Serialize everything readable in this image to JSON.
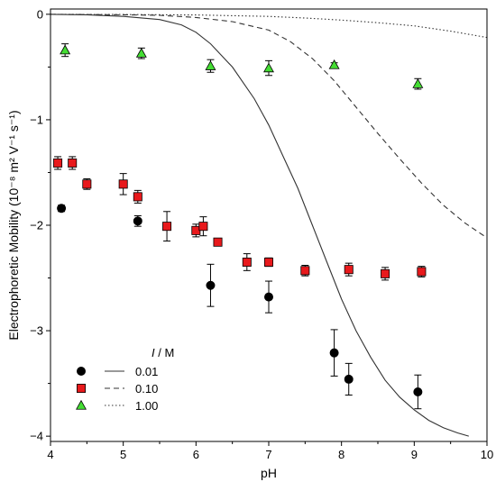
{
  "chart_data": {
    "type": "scatter",
    "xlabel": "pH",
    "ylabel": "Electrophoretic Mobility (10⁻⁸ m² V⁻¹ s⁻¹)",
    "xlim": [
      4,
      10
    ],
    "ylim": [
      -4.05,
      0.05
    ],
    "x_ticks": [
      4,
      5,
      6,
      7,
      8,
      9,
      10
    ],
    "y_ticks": [
      0,
      -1,
      -2,
      -3,
      -4
    ],
    "grid": false,
    "legend": {
      "position": "bottom-left",
      "title_italic": "I",
      "title_rest": " / M",
      "entries": [
        "0.01",
        "0.10",
        "1.00"
      ]
    },
    "series": [
      {
        "marker": "circle",
        "color": "#000000",
        "line_style": "solid",
        "points": [
          {
            "x": 4.15,
            "y": -1.84,
            "err": 0.03
          },
          {
            "x": 5.2,
            "y": -1.96,
            "err": 0.05
          },
          {
            "x": 6.2,
            "y": -2.57,
            "err": 0.2
          },
          {
            "x": 7.0,
            "y": -2.68,
            "err": 0.15
          },
          {
            "x": 7.9,
            "y": -3.21,
            "err": 0.22
          },
          {
            "x": 8.1,
            "y": -3.46,
            "err": 0.15
          },
          {
            "x": 9.05,
            "y": -3.58,
            "err": 0.16
          }
        ]
      },
      {
        "marker": "square",
        "color": "#e8191c",
        "line_style": "dashed",
        "points": [
          {
            "x": 4.1,
            "y": -1.41,
            "err": 0.06
          },
          {
            "x": 4.3,
            "y": -1.41,
            "err": 0.06
          },
          {
            "x": 4.5,
            "y": -1.61,
            "err": 0.05
          },
          {
            "x": 5.0,
            "y": -1.61,
            "err": 0.1
          },
          {
            "x": 5.2,
            "y": -1.73,
            "err": 0.06
          },
          {
            "x": 5.6,
            "y": -2.01,
            "err": 0.14
          },
          {
            "x": 6.0,
            "y": -2.05,
            "err": 0.06
          },
          {
            "x": 6.1,
            "y": -2.01,
            "err": 0.09
          },
          {
            "x": 6.3,
            "y": -2.16,
            "err": 0.02
          },
          {
            "x": 6.7,
            "y": -2.35,
            "err": 0.08
          },
          {
            "x": 7.0,
            "y": -2.35,
            "err": 0.04
          },
          {
            "x": 7.5,
            "y": -2.43,
            "err": 0.05
          },
          {
            "x": 8.1,
            "y": -2.42,
            "err": 0.06
          },
          {
            "x": 8.6,
            "y": -2.46,
            "err": 0.06
          },
          {
            "x": 9.1,
            "y": -2.44,
            "err": 0.05
          }
        ]
      },
      {
        "marker": "triangle",
        "color": "#44dd33",
        "line_style": "dotted",
        "points": [
          {
            "x": 4.2,
            "y": -0.34,
            "err": 0.06
          },
          {
            "x": 5.25,
            "y": -0.37,
            "err": 0.05
          },
          {
            "x": 6.2,
            "y": -0.49,
            "err": 0.06
          },
          {
            "x": 7.0,
            "y": -0.51,
            "err": 0.07
          },
          {
            "x": 7.9,
            "y": -0.48,
            "err": 0.02
          },
          {
            "x": 9.05,
            "y": -0.66,
            "err": 0.05
          }
        ]
      }
    ],
    "model_curves": [
      {
        "line_style": "solid",
        "points": [
          [
            4.0,
            0
          ],
          [
            4.5,
            -0.005
          ],
          [
            5.0,
            -0.02
          ],
          [
            5.5,
            -0.05
          ],
          [
            5.8,
            -0.1
          ],
          [
            6.0,
            -0.17
          ],
          [
            6.2,
            -0.28
          ],
          [
            6.5,
            -0.5
          ],
          [
            6.8,
            -0.8
          ],
          [
            7.0,
            -1.05
          ],
          [
            7.2,
            -1.35
          ],
          [
            7.4,
            -1.65
          ],
          [
            7.6,
            -2.0
          ],
          [
            7.8,
            -2.35
          ],
          [
            8.0,
            -2.7
          ],
          [
            8.2,
            -3.0
          ],
          [
            8.4,
            -3.25
          ],
          [
            8.6,
            -3.47
          ],
          [
            8.8,
            -3.63
          ],
          [
            9.0,
            -3.75
          ],
          [
            9.2,
            -3.85
          ],
          [
            9.4,
            -3.92
          ],
          [
            9.6,
            -3.97
          ],
          [
            9.75,
            -4.0
          ]
        ]
      },
      {
        "line_style": "dashed",
        "points": [
          [
            4.0,
            0
          ],
          [
            5.0,
            -0.005
          ],
          [
            5.5,
            -0.01
          ],
          [
            6.0,
            -0.03
          ],
          [
            6.5,
            -0.07
          ],
          [
            7.0,
            -0.15
          ],
          [
            7.3,
            -0.26
          ],
          [
            7.6,
            -0.42
          ],
          [
            7.9,
            -0.63
          ],
          [
            8.2,
            -0.88
          ],
          [
            8.5,
            -1.13
          ],
          [
            8.8,
            -1.37
          ],
          [
            9.1,
            -1.6
          ],
          [
            9.4,
            -1.81
          ],
          [
            9.7,
            -1.98
          ],
          [
            10.0,
            -2.12
          ]
        ]
      },
      {
        "line_style": "dotted",
        "points": [
          [
            4.0,
            0
          ],
          [
            5.0,
            -0.002
          ],
          [
            6.0,
            -0.006
          ],
          [
            7.0,
            -0.02
          ],
          [
            7.5,
            -0.035
          ],
          [
            8.0,
            -0.055
          ],
          [
            8.5,
            -0.08
          ],
          [
            9.0,
            -0.11
          ],
          [
            9.5,
            -0.16
          ],
          [
            10.0,
            -0.22
          ]
        ]
      }
    ]
  }
}
